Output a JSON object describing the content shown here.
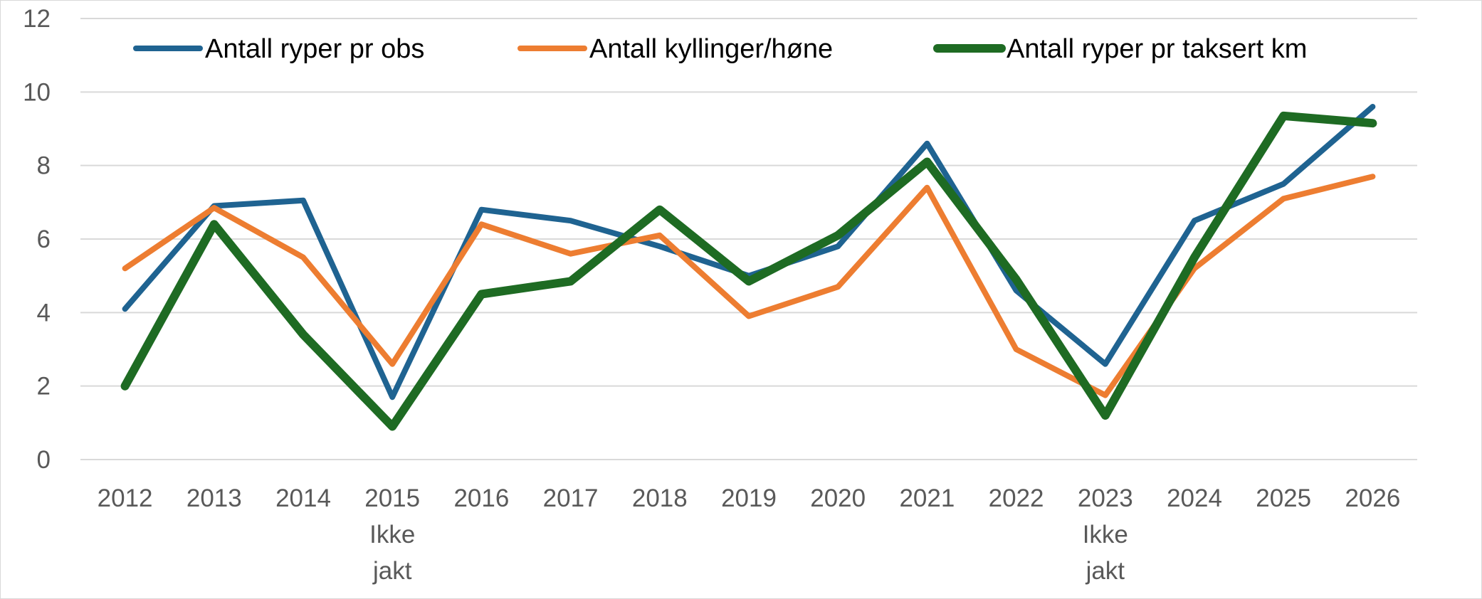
{
  "chart_data": {
    "type": "line",
    "categories": [
      "2012",
      "2013",
      "2014",
      "2015",
      "2016",
      "2017",
      "2018",
      "2019",
      "2020",
      "2021",
      "2022",
      "2023",
      "2024",
      "2025",
      "2026"
    ],
    "category_notes": [
      {
        "category": "2015",
        "lines": [
          "Ikke",
          "jakt"
        ]
      },
      {
        "category": "2023",
        "lines": [
          "Ikke",
          "jakt"
        ]
      }
    ],
    "ylim": [
      0,
      12
    ],
    "yticks": [
      0,
      2,
      4,
      6,
      8,
      10,
      12
    ],
    "grid": true,
    "legend_position": "top",
    "series": [
      {
        "name": "Antall ryper pr obs",
        "color": "#1f6391",
        "values": [
          4.1,
          6.9,
          7.05,
          1.7,
          6.8,
          6.5,
          5.8,
          5.0,
          5.8,
          8.6,
          4.6,
          2.6,
          6.5,
          7.5,
          9.6
        ]
      },
      {
        "name": "Antall kyllinger/høne",
        "color": "#ed7d31",
        "values": [
          5.2,
          6.85,
          5.5,
          2.6,
          6.4,
          5.6,
          6.1,
          3.9,
          4.7,
          7.4,
          3.0,
          1.75,
          5.2,
          7.1,
          7.7
        ]
      },
      {
        "name": "Antall ryper pr taksert km",
        "color": "#1e6b23",
        "values": [
          2.0,
          6.4,
          3.4,
          0.9,
          4.5,
          4.85,
          6.8,
          4.85,
          6.1,
          8.1,
          4.9,
          1.2,
          5.5,
          9.35,
          9.15
        ]
      }
    ]
  }
}
